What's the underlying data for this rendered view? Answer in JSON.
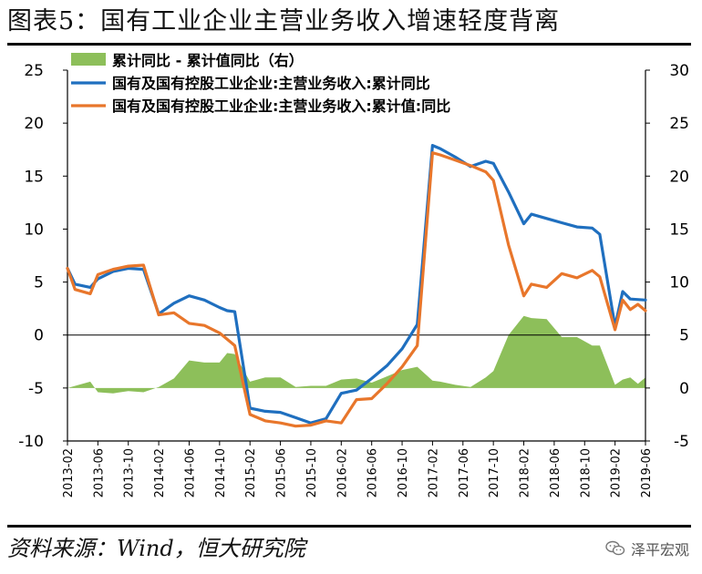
{
  "title": "图表5：国有工业企业主营业务收入增速轻度背离",
  "source": "资料来源：Wind，恒大研究院",
  "brand": "泽平宏观",
  "chart_data": {
    "type": "line",
    "xlabel": "",
    "ylabel": "",
    "ylim_left": [
      -10,
      25
    ],
    "ylim_right": [
      -5,
      30
    ],
    "yticks_left": [
      "25",
      "20",
      "15",
      "10",
      "5",
      "0",
      "-5",
      "-10"
    ],
    "yticks_right": [
      "30",
      "25",
      "20",
      "15",
      "10",
      "5",
      "0",
      "-5"
    ],
    "x_start": "2013-02",
    "x_end": "2019-06",
    "xticks": [
      "2013-02",
      "2013-06",
      "2013-10",
      "2014-02",
      "2014-06",
      "2014-10",
      "2015-02",
      "2015-06",
      "2015-10",
      "2016-02",
      "2016-06",
      "2016-10",
      "2017-02",
      "2017-06",
      "2017-10",
      "2018-02",
      "2018-06",
      "2018-10",
      "2019-02",
      "2019-06"
    ],
    "legend": [
      {
        "name": "累计同比 - 累计值同比（右）",
        "color": "#8DBF5A",
        "kind": "area"
      },
      {
        "name": "国有及国有控股工业企业:主营业务收入:累计同比",
        "color": "#1F6FBF",
        "kind": "line"
      },
      {
        "name": "国有及国有控股工业企业:主营业务收入:累计值:同比",
        "color": "#E8762B",
        "kind": "line"
      }
    ],
    "series": [
      {
        "name": "国有及国有控股工业企业:主营业务收入:累计同比",
        "axis": "left",
        "color": "#1F6FBF",
        "x": [
          "2013-02",
          "2013-03",
          "2013-05",
          "2013-06",
          "2013-08",
          "2013-10",
          "2013-12",
          "2014-02",
          "2014-04",
          "2014-06",
          "2014-08",
          "2014-10",
          "2014-11",
          "2014-12",
          "2015-02",
          "2015-04",
          "2015-06",
          "2015-08",
          "2015-10",
          "2015-12",
          "2016-02",
          "2016-04",
          "2016-06",
          "2016-08",
          "2016-10",
          "2016-12",
          "2017-02",
          "2017-03",
          "2017-05",
          "2017-07",
          "2017-09",
          "2017-10",
          "2017-12",
          "2018-02",
          "2018-03",
          "2018-05",
          "2018-07",
          "2018-09",
          "2018-11",
          "2018-12",
          "2019-02",
          "2019-03",
          "2019-04",
          "2019-06"
        ],
        "values": [
          6.3,
          4.8,
          4.5,
          5.3,
          6.0,
          6.3,
          6.2,
          2.0,
          3.0,
          3.7,
          3.3,
          2.6,
          2.3,
          2.2,
          -6.9,
          -7.2,
          -7.3,
          -7.8,
          -8.3,
          -7.9,
          -5.5,
          -5.2,
          -4.1,
          -2.9,
          -1.3,
          1.0,
          17.9,
          17.6,
          16.8,
          15.9,
          16.4,
          16.2,
          13.5,
          10.5,
          11.4,
          11.0,
          10.6,
          10.2,
          10.1,
          9.5,
          0.8,
          4.1,
          3.4,
          3.3
        ]
      },
      {
        "name": "国有及国有控股工业企业:主营业务收入:累计值:同比",
        "axis": "left",
        "color": "#E8762B",
        "x": [
          "2013-02",
          "2013-03",
          "2013-05",
          "2013-06",
          "2013-08",
          "2013-10",
          "2013-12",
          "2014-02",
          "2014-04",
          "2014-06",
          "2014-08",
          "2014-10",
          "2014-12",
          "2015-02",
          "2015-04",
          "2015-06",
          "2015-08",
          "2015-10",
          "2015-12",
          "2016-02",
          "2016-04",
          "2016-06",
          "2016-08",
          "2016-10",
          "2016-12",
          "2017-02",
          "2017-03",
          "2017-05",
          "2017-07",
          "2017-09",
          "2017-10",
          "2017-12",
          "2018-02",
          "2018-03",
          "2018-05",
          "2018-07",
          "2018-09",
          "2018-11",
          "2018-12",
          "2019-02",
          "2019-03",
          "2019-04",
          "2019-05",
          "2019-06"
        ],
        "values": [
          6.3,
          4.3,
          3.9,
          5.7,
          6.2,
          6.5,
          6.6,
          1.9,
          2.1,
          1.1,
          0.9,
          0.2,
          -1.0,
          -7.5,
          -8.1,
          -8.3,
          -8.6,
          -8.5,
          -8.1,
          -8.3,
          -6.1,
          -6.0,
          -4.6,
          -3.0,
          -1.0,
          17.2,
          17.0,
          16.5,
          16.0,
          15.4,
          14.6,
          8.5,
          3.7,
          4.8,
          4.5,
          5.8,
          5.4,
          6.1,
          5.5,
          0.5,
          3.3,
          2.4,
          2.9,
          2.3
        ]
      },
      {
        "name": "累计同比 - 累计值同比（右）",
        "axis": "right",
        "color": "#8DBF5A",
        "x": [
          "2013-02",
          "2013-05",
          "2013-06",
          "2013-08",
          "2013-10",
          "2013-12",
          "2014-02",
          "2014-04",
          "2014-06",
          "2014-08",
          "2014-10",
          "2014-11",
          "2014-12",
          "2015-02",
          "2015-04",
          "2015-06",
          "2015-08",
          "2015-10",
          "2015-12",
          "2016-02",
          "2016-04",
          "2016-06",
          "2016-08",
          "2016-10",
          "2016-12",
          "2017-02",
          "2017-03",
          "2017-05",
          "2017-07",
          "2017-09",
          "2017-10",
          "2017-12",
          "2018-02",
          "2018-03",
          "2018-05",
          "2018-07",
          "2018-09",
          "2018-11",
          "2018-12",
          "2019-02",
          "2019-03",
          "2019-04",
          "2019-05",
          "2019-06"
        ],
        "values": [
          0.0,
          0.6,
          -0.4,
          -0.5,
          -0.3,
          -0.4,
          0.1,
          0.9,
          2.6,
          2.4,
          2.4,
          3.3,
          3.2,
          0.6,
          1.0,
          1.0,
          0.1,
          0.2,
          0.2,
          0.8,
          0.9,
          0.5,
          1.1,
          1.7,
          2.0,
          0.7,
          0.6,
          0.3,
          0.1,
          1.0,
          1.6,
          5.0,
          6.8,
          6.6,
          6.5,
          4.8,
          4.8,
          4.0,
          4.0,
          0.3,
          0.8,
          1.0,
          0.4,
          1.0
        ]
      }
    ]
  }
}
